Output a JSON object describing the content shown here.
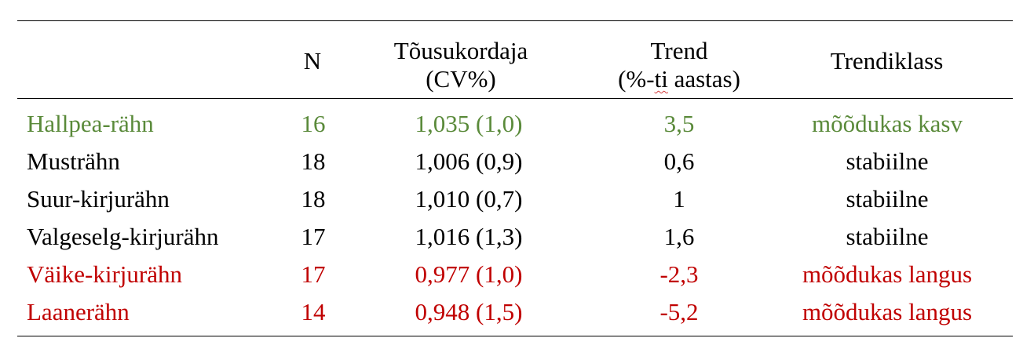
{
  "table": {
    "headers": {
      "species": "",
      "n": "N",
      "ratio_line1": "Tõusukordaja",
      "ratio_line2": "(CV%)",
      "trend_line1": "Trend",
      "trend_line2_a": "(%-",
      "trend_line2_b": "ti",
      "trend_line2_c": " aastas)",
      "class": "Trendiklass"
    },
    "rows": [
      {
        "species": "Hallpea-rähn",
        "n": "16",
        "ratio": "1,035 (1,0)",
        "trend": "3,5",
        "class": "mõõdukas kasv",
        "color": "#5a8a3a"
      },
      {
        "species": "Musträhn",
        "n": "18",
        "ratio": "1,006 (0,9)",
        "trend": "0,6",
        "class": "stabiilne",
        "color": "#000000"
      },
      {
        "species": "Suur-kirjurähn",
        "n": "18",
        "ratio": "1,010 (0,7)",
        "trend": "1",
        "class": "stabiilne",
        "color": "#000000"
      },
      {
        "species": "Valgeselg-kirjurähn",
        "n": "17",
        "ratio": "1,016 (1,3)",
        "trend": "1,6",
        "class": "stabiilne",
        "color": "#000000"
      },
      {
        "species": "Väike-kirjurähn",
        "n": "17",
        "ratio": "0,977 (1,0)",
        "trend": "-2,3",
        "class": "mõõdukas langus",
        "color": "#c00000"
      },
      {
        "species": "Laanerähn",
        "n": "14",
        "ratio": "0,948 (1,5)",
        "trend": "-5,2",
        "class": "mõõdukas langus",
        "color": "#c00000"
      }
    ]
  }
}
